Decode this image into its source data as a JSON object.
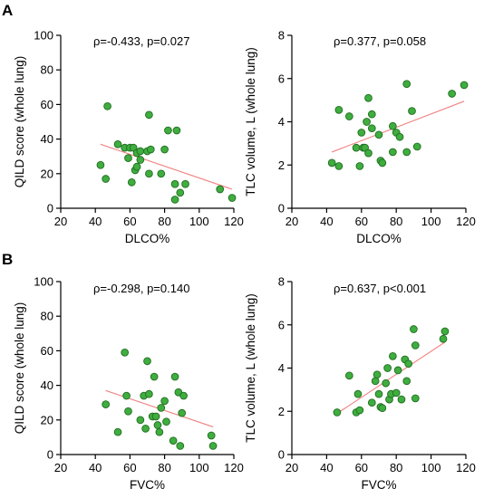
{
  "panel_labels": [
    "A",
    "B"
  ],
  "chart_data": [
    {
      "type": "scatter",
      "panel": "A",
      "xlabel": "DLCO%",
      "ylabel": "QILD score (whole lung)",
      "annotation": "ρ=-0.433, p=0.027",
      "xlim": [
        20,
        120
      ],
      "ylim": [
        0,
        100
      ],
      "xticks": [
        20,
        40,
        60,
        80,
        100,
        120
      ],
      "yticks": [
        0,
        20,
        40,
        60,
        80,
        100
      ],
      "trendline": [
        [
          43,
          37
        ],
        [
          119,
          11
        ]
      ],
      "points": [
        [
          43,
          25
        ],
        [
          47,
          59
        ],
        [
          46,
          17
        ],
        [
          53,
          37
        ],
        [
          57,
          35
        ],
        [
          59,
          29
        ],
        [
          60,
          35
        ],
        [
          61,
          15
        ],
        [
          62,
          35
        ],
        [
          63,
          22
        ],
        [
          64,
          24
        ],
        [
          64,
          32
        ],
        [
          66,
          28
        ],
        [
          66,
          33
        ],
        [
          70,
          33
        ],
        [
          71,
          54
        ],
        [
          71,
          20
        ],
        [
          72,
          34
        ],
        [
          78,
          20
        ],
        [
          80,
          34
        ],
        [
          82,
          45
        ],
        [
          87,
          45
        ],
        [
          86,
          14
        ],
        [
          86,
          5
        ],
        [
          89,
          9
        ],
        [
          92,
          14
        ],
        [
          112,
          11
        ],
        [
          119,
          6
        ]
      ]
    },
    {
      "type": "scatter",
      "panel": "A",
      "xlabel": "DLCO%",
      "ylabel": "TLC volume, L (whole lung)",
      "annotation": "ρ=0.377, p=0.058",
      "xlim": [
        20,
        120
      ],
      "ylim": [
        0,
        8
      ],
      "xticks": [
        20,
        40,
        60,
        80,
        100,
        120
      ],
      "yticks": [
        0,
        2,
        4,
        6,
        8
      ],
      "trendline": [
        [
          43,
          2.6
        ],
        [
          119,
          4.95
        ]
      ],
      "points": [
        [
          43,
          2.1
        ],
        [
          47,
          4.55
        ],
        [
          47,
          1.95
        ],
        [
          53,
          4.25
        ],
        [
          57,
          2.8
        ],
        [
          59,
          1.95
        ],
        [
          60,
          3.5
        ],
        [
          61,
          2.8
        ],
        [
          62,
          2.8
        ],
        [
          63,
          4.0
        ],
        [
          64,
          5.1
        ],
        [
          64,
          2.55
        ],
        [
          66,
          3.7
        ],
        [
          66,
          4.35
        ],
        [
          70,
          3.4
        ],
        [
          71,
          2.2
        ],
        [
          72,
          2.1
        ],
        [
          78,
          3.8
        ],
        [
          78,
          2.6
        ],
        [
          80,
          3.5
        ],
        [
          82,
          3.3
        ],
        [
          86,
          5.75
        ],
        [
          86,
          2.6
        ],
        [
          89,
          4.5
        ],
        [
          92,
          2.85
        ],
        [
          112,
          5.3
        ],
        [
          119,
          5.7
        ]
      ]
    },
    {
      "type": "scatter",
      "panel": "B",
      "xlabel": "FVC%",
      "ylabel": "QILD score (whole lung)",
      "annotation": "ρ=-0.298, p=0.140",
      "xlim": [
        20,
        120
      ],
      "ylim": [
        0,
        100
      ],
      "xticks": [
        20,
        40,
        60,
        80,
        100,
        120
      ],
      "yticks": [
        0,
        20,
        40,
        60,
        80,
        100
      ],
      "trendline": [
        [
          46,
          37
        ],
        [
          108,
          16
        ]
      ],
      "points": [
        [
          46,
          29
        ],
        [
          53,
          13
        ],
        [
          57,
          59
        ],
        [
          58,
          34
        ],
        [
          59,
          25
        ],
        [
          66,
          20
        ],
        [
          68,
          34
        ],
        [
          69,
          15
        ],
        [
          70,
          54
        ],
        [
          71,
          35
        ],
        [
          73,
          22
        ],
        [
          74,
          45
        ],
        [
          75,
          22
        ],
        [
          76,
          17
        ],
        [
          77,
          13
        ],
        [
          78,
          27
        ],
        [
          80,
          31
        ],
        [
          81,
          19
        ],
        [
          85,
          8
        ],
        [
          86,
          45
        ],
        [
          88,
          36
        ],
        [
          89,
          5
        ],
        [
          90,
          24
        ],
        [
          91,
          34
        ],
        [
          107,
          11
        ],
        [
          108,
          5
        ]
      ]
    },
    {
      "type": "scatter",
      "panel": "B",
      "xlabel": "FVC%",
      "ylabel": "TLC volume, L (whole lung)",
      "annotation": "ρ=0.637, p<0.001",
      "xlim": [
        20,
        120
      ],
      "ylim": [
        0,
        8
      ],
      "xticks": [
        20,
        40,
        60,
        80,
        100,
        120
      ],
      "yticks": [
        0,
        2,
        4,
        6,
        8
      ],
      "trendline": [
        [
          46,
          1.9
        ],
        [
          108,
          5.2
        ]
      ],
      "points": [
        [
          46,
          1.95
        ],
        [
          53,
          3.65
        ],
        [
          57,
          1.95
        ],
        [
          58,
          2.8
        ],
        [
          59,
          2.05
        ],
        [
          66,
          2.4
        ],
        [
          68,
          3.4
        ],
        [
          69,
          3.7
        ],
        [
          70,
          2.8
        ],
        [
          71,
          2.2
        ],
        [
          72,
          2.15
        ],
        [
          74,
          3.3
        ],
        [
          75,
          4.0
        ],
        [
          76,
          2.55
        ],
        [
          77,
          2.8
        ],
        [
          78,
          4.55
        ],
        [
          80,
          2.85
        ],
        [
          81,
          3.9
        ],
        [
          83,
          2.55
        ],
        [
          85,
          4.4
        ],
        [
          86,
          3.4
        ],
        [
          87,
          4.2
        ],
        [
          90,
          5.8
        ],
        [
          91,
          5.05
        ],
        [
          91,
          2.6
        ],
        [
          107,
          5.35
        ],
        [
          108,
          5.7
        ]
      ]
    }
  ]
}
